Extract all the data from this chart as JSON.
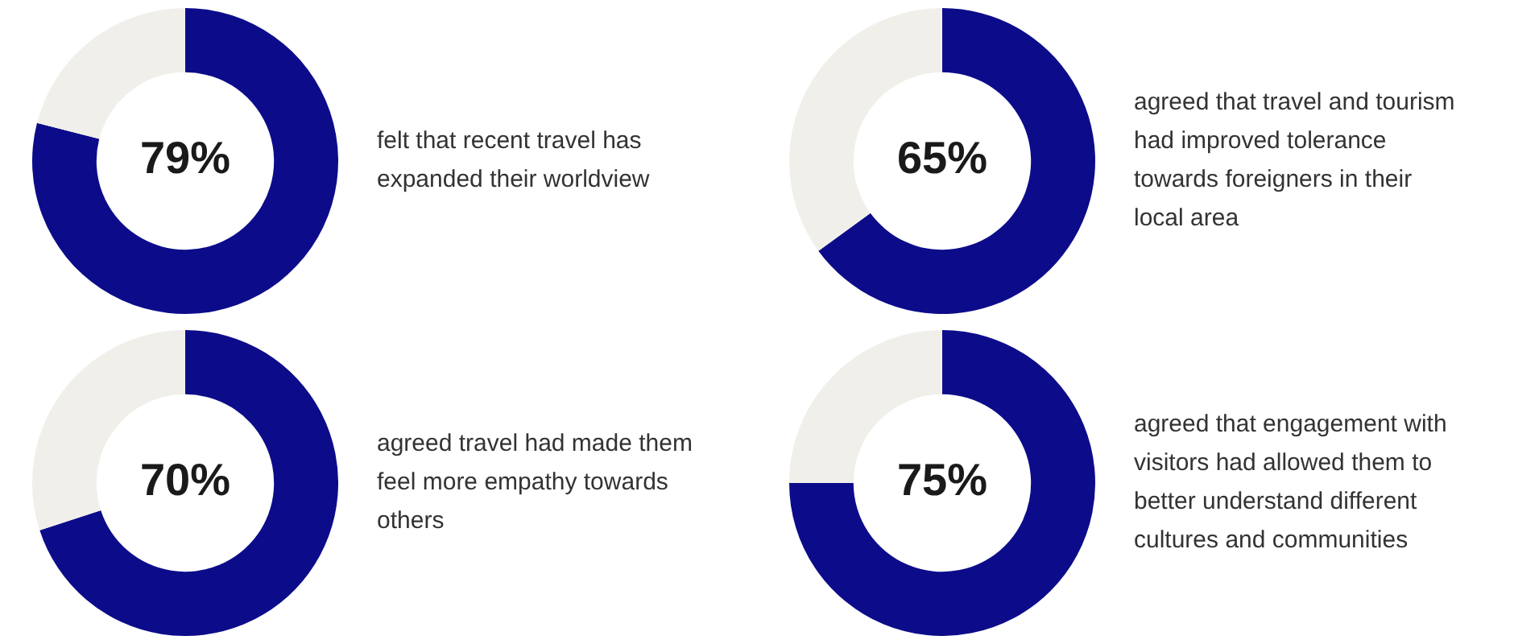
{
  "chart_data": [
    {
      "type": "donut",
      "title": "felt that recent travel has expanded their worldview",
      "categories": [
        null,
        null
      ],
      "values": [
        79,
        21
      ],
      "colors": [
        "#0c0c8a",
        "#f0efea"
      ],
      "value_labels": [
        "79%",
        null
      ],
      "legend": false
    },
    {
      "type": "donut",
      "title": "agreed that travel and tourism had improved tolerance towards foreigners in their local area",
      "categories": [
        null,
        null
      ],
      "values": [
        65,
        35
      ],
      "colors": [
        "#0c0c8a",
        "#f0efea"
      ],
      "value_labels": [
        "65%",
        null
      ],
      "legend": false
    },
    {
      "type": "donut",
      "title": "agreed travel had made them feel more empathy towards others",
      "categories": [
        null,
        null
      ],
      "values": [
        70,
        30
      ],
      "colors": [
        "#0c0c8a",
        "#f0efea"
      ],
      "value_labels": [
        "70%",
        null
      ],
      "legend": false
    },
    {
      "type": "donut",
      "title": "agreed that engagement with visitors had allowed them to better understand different cultures and communities",
      "categories": [
        null,
        null
      ],
      "values": [
        75,
        25
      ],
      "colors": [
        "#0c0c8a",
        "#f0efea"
      ],
      "value_labels": [
        "75%",
        null
      ],
      "legend": false
    }
  ]
}
